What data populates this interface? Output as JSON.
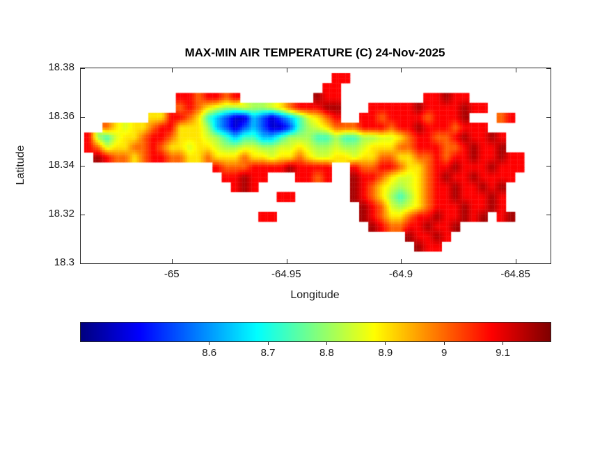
{
  "colors": {
    "background": "#ffffff",
    "text": "#1a1a1a",
    "axis_line": "#262626"
  },
  "chart_data": {
    "type": "heatmap",
    "title": "MAX-MIN AIR TEMPERATURE (C) 24-Nov-2025",
    "xlabel": "Longitude",
    "ylabel": "Latitude",
    "xlim": [
      -65.04,
      -64.835
    ],
    "ylim": [
      18.3,
      18.38
    ],
    "xticks": [
      -65,
      -64.95,
      -64.9,
      -64.85
    ],
    "xtick_labels": [
      "-65",
      "-64.95",
      "-64.9",
      "-64.85"
    ],
    "yticks": [
      18.38,
      18.36,
      18.34,
      18.32,
      18.3
    ],
    "ytick_labels": [
      "18.38",
      "18.36",
      "18.34",
      "18.32",
      "18.3"
    ],
    "colormap": "jet",
    "colorbar": {
      "orientation": "horizontal",
      "clim": [
        8.38,
        9.18
      ],
      "ticks": [
        8.6,
        8.7,
        8.8,
        8.9,
        9,
        9.1
      ],
      "tick_labels": [
        "8.6",
        "8.7",
        "8.8",
        "8.9",
        "9",
        "9.1"
      ]
    },
    "grid": {
      "n_rows": 18,
      "n_cols": 50,
      "lon_start": -65.0385,
      "lon_step": 0.004,
      "lat_start": 18.378,
      "lat_step": 0.00406,
      "levels": {
        "0": 8.44,
        "1": 8.54,
        "2": 8.63,
        "3": 8.73,
        "4": 8.81,
        "5": 8.85,
        "6": 8.9,
        "7": 9.0,
        "8": 9.08,
        "9": 9.15
      },
      "cells": [
        [
          [
            27,
            "88"
          ]
        ],
        [
          [
            26,
            "88"
          ]
        ],
        [
          [
            10,
            "8878878"
          ],
          [
            25,
            "988"
          ],
          [
            37,
            "88988"
          ]
        ],
        [
          [
            10,
            "787654454456788"
          ],
          [
            25,
            "899"
          ],
          [
            31,
            "8888898888988"
          ]
        ],
        [
          [
            7,
            "668876"
          ],
          [
            13,
            "32100210123"
          ],
          [
            24,
            "5678"
          ],
          [
            30,
            "887888878889"
          ],
          [
            45,
            "78"
          ]
        ],
        [
          [
            2,
            "76566"
          ],
          [
            7,
            "788"
          ],
          [
            10,
            "666"
          ],
          [
            13,
            "42101210013"
          ],
          [
            24,
            "4567"
          ],
          [
            28,
            "7788"
          ],
          [
            32,
            "878898887888"
          ]
        ],
        [
          [
            0,
            "8435667887666"
          ],
          [
            13,
            "54323322344"
          ],
          [
            24,
            "4334334455"
          ],
          [
            34,
            "678877898898"
          ]
        ],
        [
          [
            0,
            "8756677876656"
          ],
          [
            13,
            "65445544556"
          ],
          [
            24,
            "5445445666"
          ],
          [
            34,
            "778887789889"
          ]
        ],
        [
          [
            1,
            "987767887766"
          ],
          [
            13,
            "76667665667"
          ],
          [
            24,
            "6556656677"
          ],
          [
            34,
            "667787889889"
          ],
          [
            46,
            "88"
          ]
        ],
        [
          [
            14,
            "8777888"
          ],
          [
            21,
            "898888"
          ],
          [
            29,
            "87788766788988898"
          ],
          [
            46,
            "88"
          ]
        ],
        [
          [
            15,
            "88988"
          ],
          [
            23,
            "8878"
          ],
          [
            29,
            "98876556789889888"
          ],
          [
            46,
            "8"
          ]
        ],
        [
          [
            16,
            "898"
          ],
          [
            29,
            "98765456788988989"
          ]
        ],
        [
          [
            21,
            "88"
          ],
          [
            29,
            "98764346788988898"
          ]
        ],
        [
          [
            30,
            "9875456788898898"
          ]
        ],
        [
          [
            19,
            "88"
          ],
          [
            30,
            "98766788988989"
          ],
          [
            45,
            "89"
          ]
        ],
        [
          [
            31,
            "9877889889"
          ]
        ],
        [
          [
            35,
            "98898"
          ]
        ],
        [
          [
            36,
            "988"
          ]
        ]
      ]
    }
  }
}
